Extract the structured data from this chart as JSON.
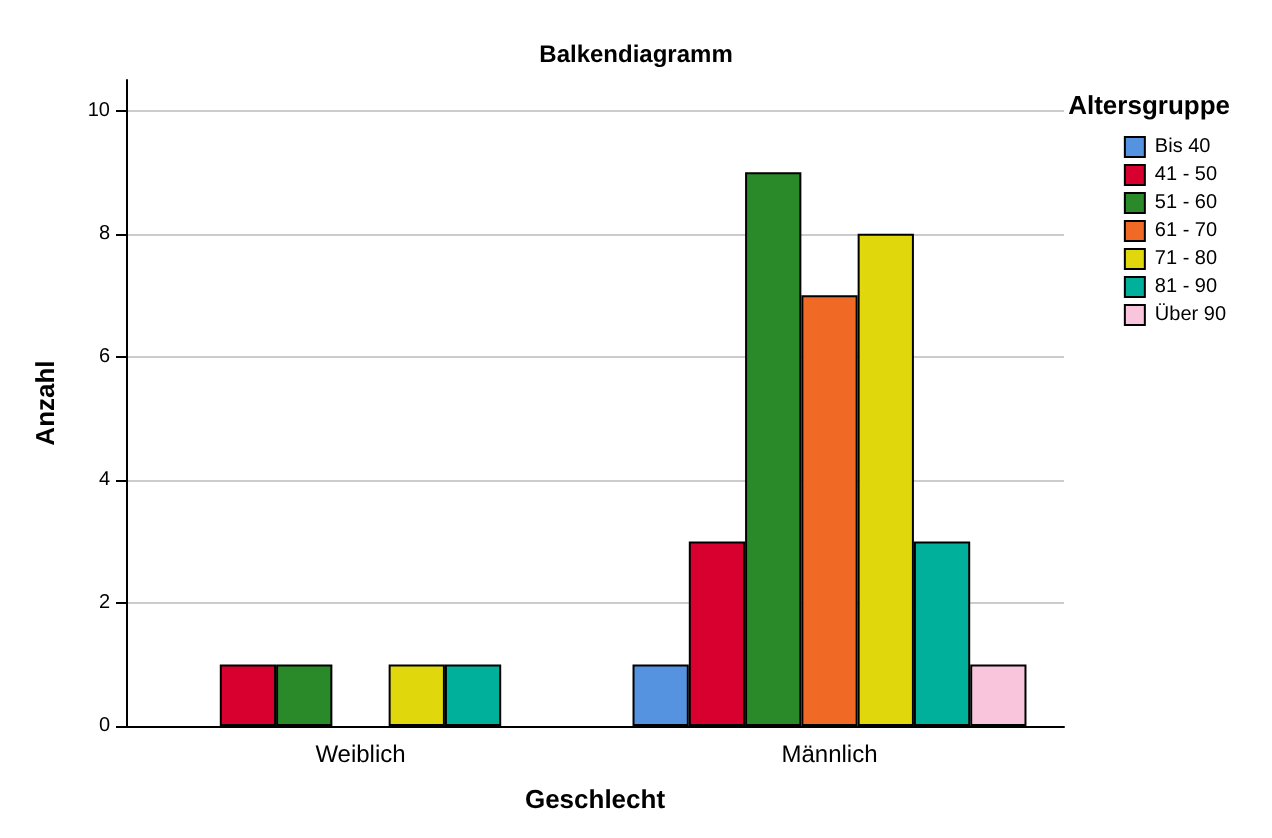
{
  "chart_data": {
    "type": "bar",
    "title": "Balkendiagramm",
    "xlabel": "Geschlecht",
    "ylabel": "Anzahl",
    "legend_title": "Altersgruppe",
    "categories": [
      "Weiblich",
      "Männlich"
    ],
    "series": [
      {
        "name": "Bis 40",
        "color": "#5592e0",
        "values": [
          null,
          1
        ]
      },
      {
        "name": "41 - 50",
        "color": "#d8002f",
        "values": [
          1,
          3
        ]
      },
      {
        "name": "51 - 60",
        "color": "#2a8a2a",
        "values": [
          1,
          9
        ]
      },
      {
        "name": "61 - 70",
        "color": "#f06a26",
        "values": [
          null,
          7
        ]
      },
      {
        "name": "71 - 80",
        "color": "#e0d80c",
        "values": [
          1,
          8
        ]
      },
      {
        "name": "81 - 90",
        "color": "#00b09a",
        "values": [
          1,
          3
        ]
      },
      {
        "name": "Über 90",
        "color": "#f9c5dc",
        "values": [
          null,
          1
        ]
      }
    ],
    "ylim": [
      0,
      10.5
    ],
    "yticks": [
      0,
      2,
      4,
      6,
      8,
      10
    ],
    "grid": "y",
    "legend": "top right"
  }
}
